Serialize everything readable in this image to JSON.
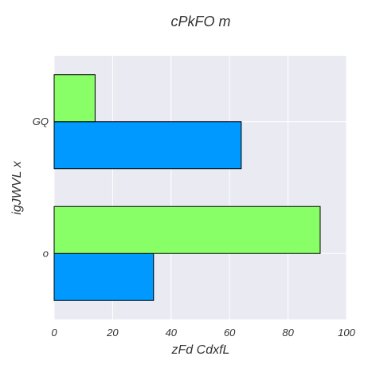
{
  "chart_data": {
    "type": "bar",
    "orientation": "horizontal",
    "title": "cPkFO m",
    "xlabel": "zFd CdxfL",
    "ylabel": "igJWVL  x",
    "categories": [
      "o",
      "GQ"
    ],
    "series": [
      {
        "values": [
          34,
          64
        ],
        "color": "#0099ff"
      },
      {
        "values": [
          91,
          14
        ],
        "color": "#88ff66"
      }
    ],
    "xlim": [
      0,
      100
    ],
    "xticks": [
      "0",
      "20",
      "40",
      "60",
      "80",
      "100"
    ],
    "grid": true,
    "background": "#eaeaf2",
    "legend": "none"
  }
}
